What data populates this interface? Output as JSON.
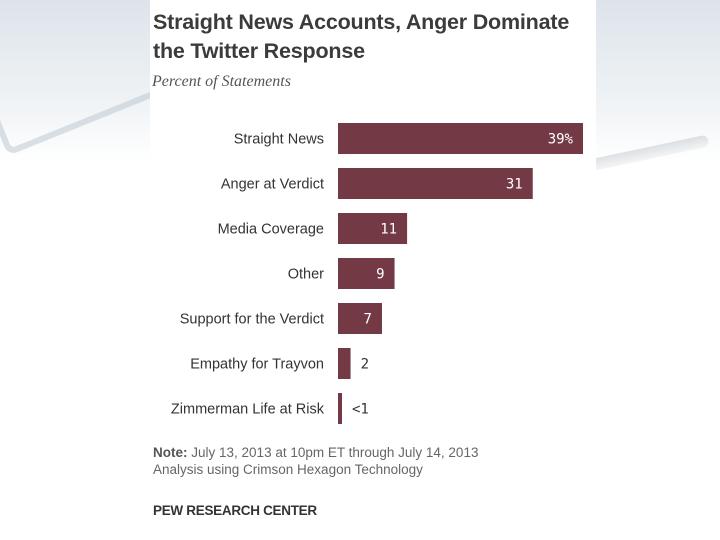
{
  "chart_data": {
    "type": "bar",
    "orientation": "horizontal",
    "title": "Straight News Accounts, Anger Dominate the Twitter Response",
    "subtitle": "Percent of Statements",
    "categories": [
      "Straight News",
      "Anger at Verdict",
      "Media Coverage",
      "Other",
      "Support for the Verdict",
      "Empathy for Trayvon",
      "Zimmerman Life at Risk"
    ],
    "values": [
      39,
      31,
      11,
      9,
      7,
      2,
      0.5
    ],
    "value_labels": [
      "39%",
      "31",
      "11",
      "9",
      "7",
      "2",
      "<1"
    ],
    "xlim": [
      0,
      39
    ],
    "bar_color": "#733a46",
    "label_inside_color": "#ffffff",
    "label_outside_color": "#333333"
  },
  "note": {
    "label": "Note:",
    "line1": "July 13, 2013 at 10pm ET through July 14, 2013",
    "line2": "Analysis using Crimson Hexagon Technology"
  },
  "source": "PEW RESEARCH CENTER"
}
